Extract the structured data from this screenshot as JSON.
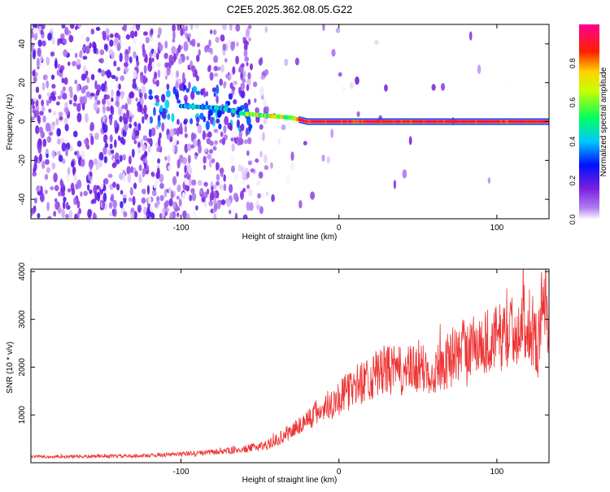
{
  "figure_title": "C2E5.2025.362.08.05.G22",
  "chart_data": [
    {
      "type": "heatmap",
      "title": "C2E5.2025.362.08.05.G22",
      "xlabel": "Height of straight line (km)",
      "ylabel": "Frequency (Hz)",
      "xlim": [
        -195,
        133
      ],
      "ylim": [
        -50,
        50
      ],
      "x_ticks": [
        -100,
        0,
        100
      ],
      "y_ticks": [
        -40,
        -20,
        0,
        20,
        40
      ],
      "colorbar": {
        "label": "Normalized spectral amplitude",
        "range": [
          0,
          1
        ],
        "ticks": [
          "0.0",
          "0.2",
          "0.4",
          "0.6",
          "0.8"
        ],
        "colors": [
          "#ffffff",
          "#8a2be2",
          "#0000ff",
          "#00ffff",
          "#00ff00",
          "#ffff00",
          "#ff0000",
          "#ff00a0"
        ]
      },
      "description_features": {
        "noise_region_x": [
          -195,
          -50
        ],
        "signal_band_freq": [
          -1,
          1
        ],
        "signal_start_x": -60,
        "signal_drift": [
          [
            -100,
            8
          ],
          [
            -75,
            7
          ],
          [
            -60,
            4
          ],
          [
            -45,
            3
          ],
          [
            -30,
            2
          ],
          [
            -20,
            0
          ],
          [
            133,
            0
          ]
        ]
      }
    },
    {
      "type": "line",
      "xlabel": "Height of straight line (km)",
      "ylabel": "SNR (10 * v/v)",
      "xlim": [
        -195,
        133
      ],
      "ylim": [
        0,
        4050
      ],
      "x_ticks": [
        -100,
        0,
        100
      ],
      "y_ticks": [
        1000,
        2000,
        3000,
        4000
      ],
      "line_color": "#ee3333",
      "trend": [
        [
          -195,
          120
        ],
        [
          -160,
          130
        ],
        [
          -130,
          140
        ],
        [
          -100,
          180
        ],
        [
          -80,
          220
        ],
        [
          -60,
          280
        ],
        [
          -45,
          380
        ],
        [
          -35,
          550
        ],
        [
          -20,
          900
        ],
        [
          -10,
          1150
        ],
        [
          0,
          1350
        ],
        [
          10,
          1600
        ],
        [
          20,
          1800
        ],
        [
          30,
          1950
        ],
        [
          40,
          1900
        ],
        [
          50,
          1950
        ],
        [
          60,
          1950
        ],
        [
          70,
          2150
        ],
        [
          80,
          2400
        ],
        [
          90,
          2500
        ],
        [
          100,
          2600
        ],
        [
          110,
          2750
        ],
        [
          120,
          3000
        ],
        [
          126,
          2400
        ],
        [
          130,
          3800
        ],
        [
          133,
          2800
        ]
      ]
    }
  ]
}
